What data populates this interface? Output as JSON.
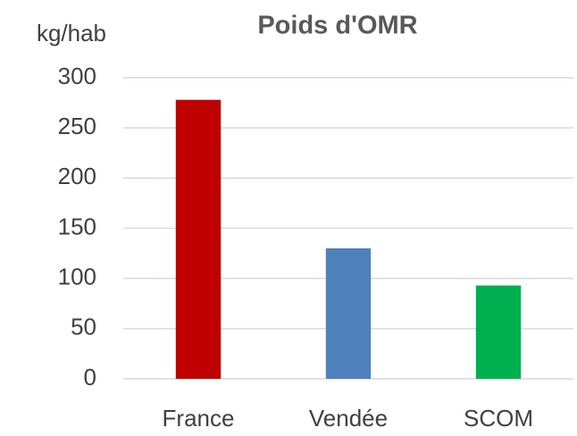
{
  "chart_data": {
    "type": "bar",
    "title": "Poids d'OMR",
    "y_label": "kg/hab",
    "categories": [
      "France",
      "Vendée",
      "SCOM"
    ],
    "values": [
      278,
      130,
      93
    ],
    "colors": [
      "#c00000",
      "#4f81bd",
      "#00b050"
    ],
    "ylim": [
      0,
      300
    ],
    "yticks": [
      0,
      50,
      100,
      150,
      200,
      250,
      300
    ],
    "grid": true
  }
}
